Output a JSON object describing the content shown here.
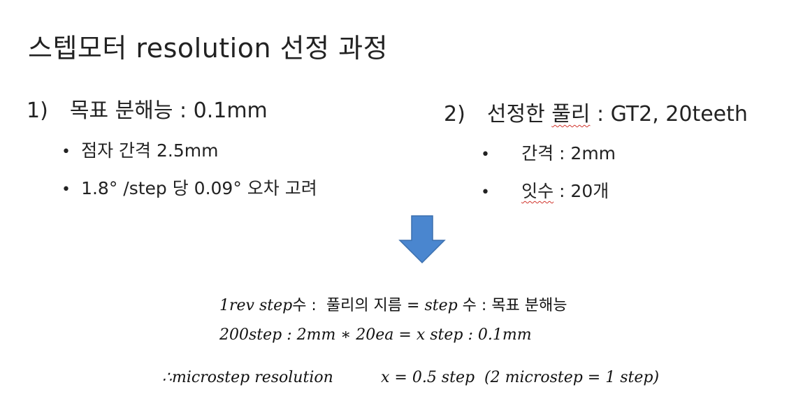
{
  "title": "스텝모터 resolution 선정 과정",
  "left": {
    "num": "1)",
    "heading_label": "목표 분해능",
    "heading_sep": " : ",
    "heading_value": "0.1mm",
    "bullets": [
      "점자 간격 2.5mm",
      "1.8° /step 당 0.09° 오차 고려"
    ]
  },
  "right": {
    "num": "2)",
    "heading_label_a": "선정한 ",
    "heading_label_b": "풀리",
    "heading_sep": " : ",
    "heading_value": "GT2, 20teeth",
    "bullets": [
      {
        "label": "간격",
        "sep": " : ",
        "value": "2mm"
      },
      {
        "label": "잇수",
        "sep": " : ",
        "value": "20개"
      }
    ]
  },
  "bullet_symbol": "•",
  "arrow_color": "#4a86cf",
  "arrow_icon": "down-arrow-icon",
  "equations": {
    "line1_a": "1rev step",
    "line1_b": "수 :  풀리의 지름 = ",
    "line1_c": "step",
    "line1_d": " 수 : 목표 분해능",
    "line2": "200step : 2mm ∗ 20ea = x step : 0.1mm",
    "line3_a": "∴microstep resolution",
    "line3_b": "x = 0.5 step  (2 microstep = 1 step)"
  }
}
